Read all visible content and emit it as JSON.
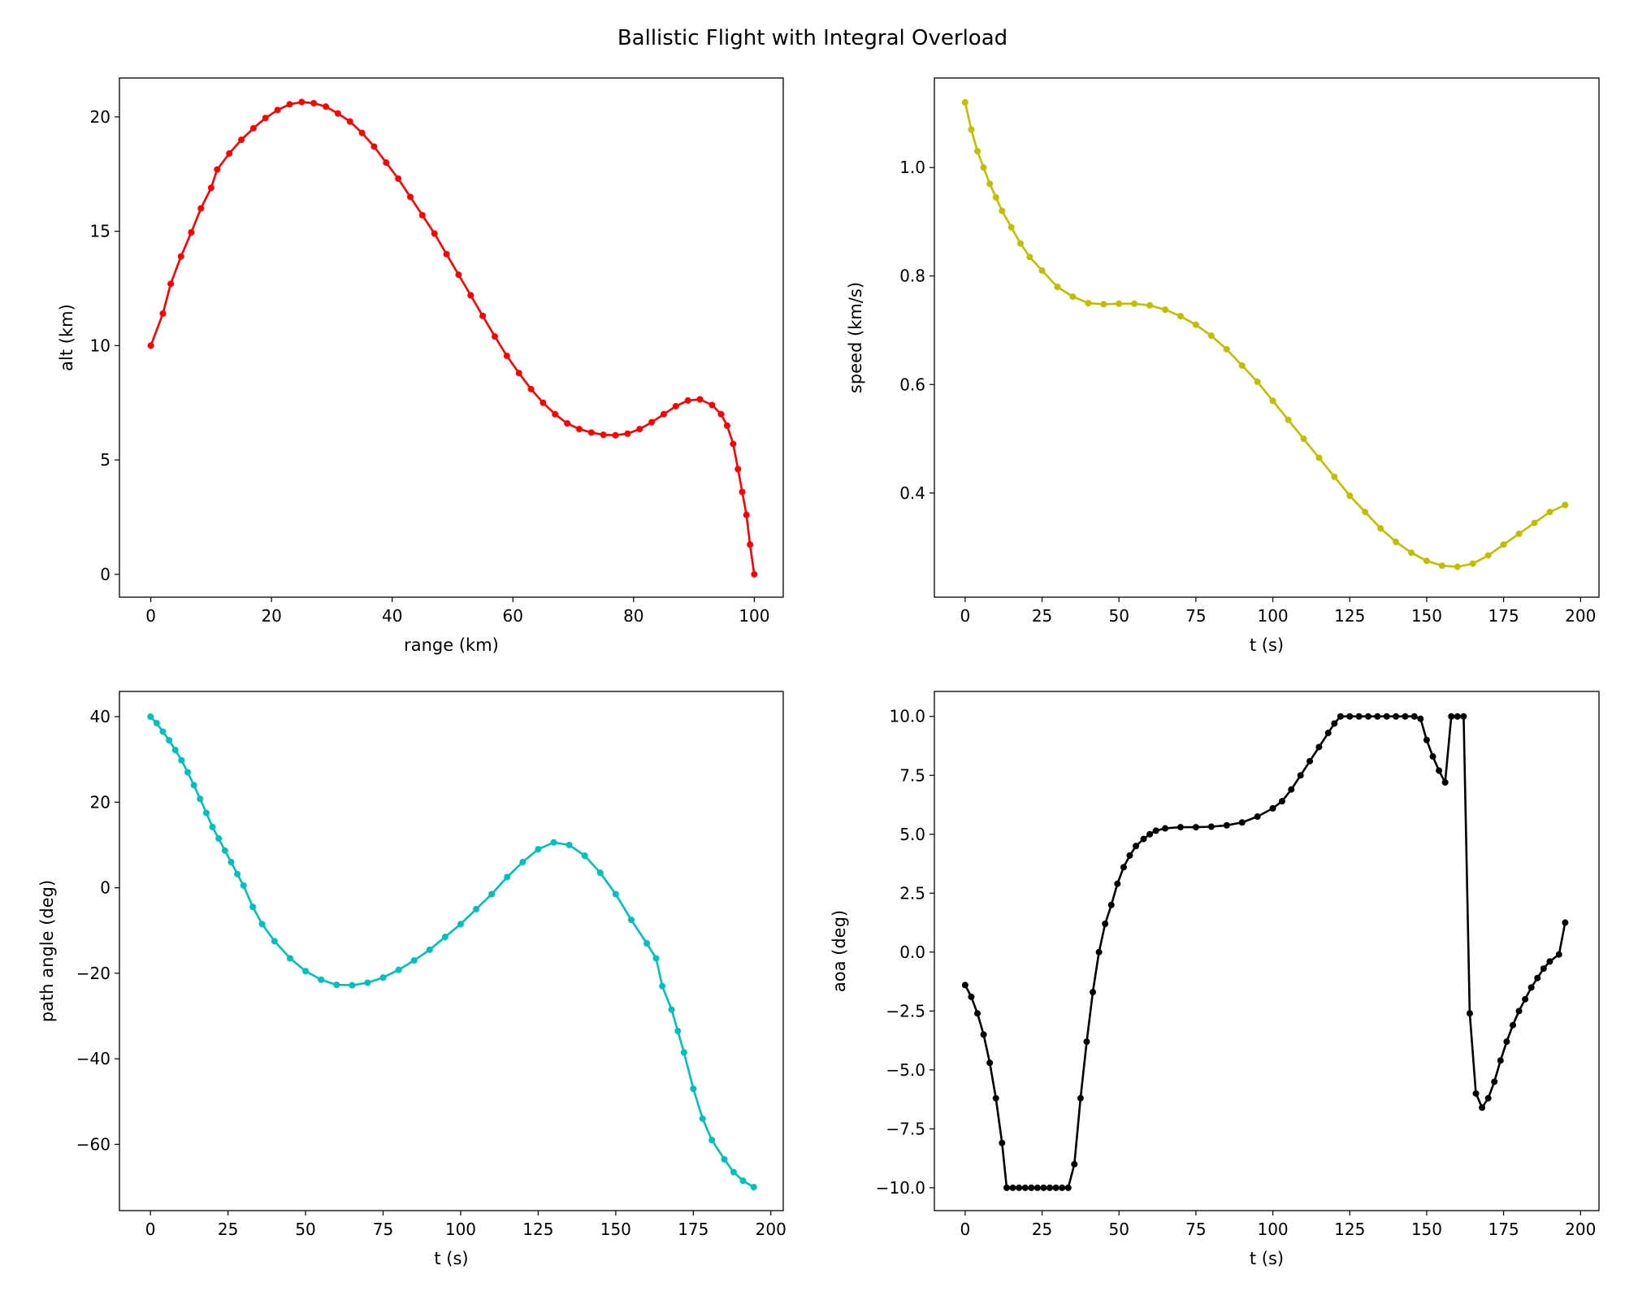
{
  "figure": {
    "title": "Ballistic Flight with Integral Overload"
  },
  "chart_data": [
    {
      "type": "line",
      "xlabel": "range (km)",
      "ylabel": "alt (km)",
      "xlim": [
        -5.2,
        104.8
      ],
      "ylim": [
        -1.0,
        21.7
      ],
      "xticks": [
        0,
        20,
        40,
        60,
        80,
        100
      ],
      "yticks": [
        0,
        5,
        10,
        15,
        20
      ],
      "grid": false,
      "color": "#ff0000",
      "marker": "dot",
      "x": [
        0,
        2,
        3.3,
        5,
        6.7,
        8.3,
        10,
        11,
        13,
        15,
        17,
        19,
        21,
        23,
        25,
        27,
        29,
        31,
        33,
        35,
        37,
        39,
        41,
        43,
        45,
        47,
        49,
        51,
        53,
        55,
        57,
        59,
        61,
        63,
        65,
        67,
        69,
        71,
        73,
        75,
        77,
        79,
        81,
        83,
        85,
        87,
        89,
        91,
        93,
        94.5,
        95.5,
        96.5,
        97.3,
        98,
        98.7,
        99.3,
        100
      ],
      "y": [
        10,
        11.4,
        12.7,
        13.9,
        14.95,
        16,
        16.9,
        17.7,
        18.4,
        19,
        19.5,
        19.95,
        20.3,
        20.55,
        20.65,
        20.6,
        20.45,
        20.15,
        19.8,
        19.3,
        18.7,
        18.0,
        17.3,
        16.5,
        15.7,
        14.9,
        14.0,
        13.1,
        12.2,
        11.3,
        10.4,
        9.55,
        8.8,
        8.1,
        7.5,
        7.0,
        6.6,
        6.35,
        6.2,
        6.1,
        6.08,
        6.15,
        6.35,
        6.65,
        7.0,
        7.35,
        7.6,
        7.65,
        7.4,
        7.0,
        6.5,
        5.7,
        4.6,
        3.6,
        2.6,
        1.3,
        0
      ]
    },
    {
      "type": "line",
      "xlabel": "t (s)",
      "ylabel": "speed (km/s)",
      "xlim": [
        -10,
        206
      ],
      "ylim": [
        0.208,
        1.165
      ],
      "xticks": [
        0,
        25,
        50,
        75,
        100,
        125,
        150,
        175,
        200
      ],
      "yticks": [
        0.4,
        0.6,
        0.8,
        1.0
      ],
      "ytick_labels": [
        "0.4",
        "0.6",
        "0.8",
        "1.0"
      ],
      "grid": false,
      "color": "#bfbf00",
      "marker": "dot",
      "x": [
        0,
        2,
        4,
        6,
        8,
        10,
        12,
        15,
        18,
        21,
        25,
        30,
        35,
        40,
        45,
        50,
        55,
        60,
        65,
        70,
        75,
        80,
        85,
        90,
        95,
        100,
        105,
        110,
        115,
        120,
        125,
        130,
        135,
        140,
        145,
        150,
        155,
        160,
        165,
        170,
        175,
        180,
        185,
        190,
        195
      ],
      "y": [
        1.12,
        1.07,
        1.03,
        1.0,
        0.97,
        0.945,
        0.92,
        0.89,
        0.86,
        0.835,
        0.81,
        0.78,
        0.762,
        0.75,
        0.748,
        0.749,
        0.749,
        0.746,
        0.738,
        0.726,
        0.71,
        0.69,
        0.665,
        0.635,
        0.605,
        0.57,
        0.535,
        0.5,
        0.465,
        0.43,
        0.395,
        0.365,
        0.335,
        0.31,
        0.29,
        0.275,
        0.266,
        0.264,
        0.27,
        0.285,
        0.305,
        0.325,
        0.345,
        0.365,
        0.378
      ]
    },
    {
      "type": "line",
      "xlabel": "t (s)",
      "ylabel": "path angle (deg)",
      "xlim": [
        -10,
        204
      ],
      "ylim": [
        -75.5,
        45.9
      ],
      "xticks": [
        0,
        25,
        50,
        75,
        100,
        125,
        150,
        175,
        200
      ],
      "yticks": [
        -60,
        -40,
        -20,
        0,
        20,
        40
      ],
      "ytick_labels": [
        "−60",
        "−40",
        "−20",
        "0",
        "20",
        "40"
      ],
      "grid": false,
      "color": "#00bfbf",
      "marker": "dot",
      "x": [
        0,
        2,
        4,
        6,
        8,
        10,
        12,
        14,
        16,
        18,
        20,
        22,
        24,
        26,
        28,
        30,
        33,
        36,
        40,
        45,
        50,
        55,
        60,
        65,
        70,
        75,
        80,
        85,
        90,
        95,
        100,
        105,
        110,
        115,
        120,
        125,
        130,
        135,
        140,
        145,
        150,
        155,
        160,
        163,
        165,
        168,
        170,
        172,
        175,
        178,
        181,
        185,
        188,
        191,
        194.5
      ],
      "y": [
        40,
        38.5,
        36.5,
        34.5,
        32.2,
        29.8,
        27,
        24,
        20.8,
        17.5,
        14.2,
        11.5,
        8.7,
        6,
        3.2,
        0.5,
        -4.5,
        -8.5,
        -12.5,
        -16.5,
        -19.5,
        -21.5,
        -22.7,
        -22.8,
        -22.2,
        -21,
        -19.2,
        -17,
        -14.5,
        -11.5,
        -8.5,
        -5,
        -1.5,
        2.5,
        6,
        9,
        10.6,
        10,
        7.5,
        3.5,
        -1.5,
        -7.5,
        -13,
        -16.5,
        -23,
        -28.5,
        -33.5,
        -38.5,
        -47,
        -54,
        -59,
        -63.5,
        -66.5,
        -68.5,
        -70
      ]
    },
    {
      "type": "line",
      "xlabel": "t (s)",
      "ylabel": "aoa (deg)",
      "xlim": [
        -10,
        206
      ],
      "ylim": [
        -10.97,
        11.06
      ],
      "xticks": [
        0,
        25,
        50,
        75,
        100,
        125,
        150,
        175,
        200
      ],
      "yticks": [
        -10,
        -7.5,
        -5,
        -2.5,
        0,
        2.5,
        5,
        7.5,
        10
      ],
      "ytick_labels": [
        "−10.0",
        "−7.5",
        "−5.0",
        "−2.5",
        "0.0",
        "2.5",
        "5.0",
        "7.5",
        "10.0"
      ],
      "grid": false,
      "color": "#000000",
      "marker": "dot",
      "x": [
        0,
        2,
        4,
        6,
        8,
        10,
        12,
        13.5,
        15.5,
        17.5,
        19.5,
        21.5,
        23.5,
        25.5,
        27.5,
        29.5,
        31.5,
        33.5,
        35.5,
        37.5,
        39.5,
        41.5,
        43.5,
        45.5,
        47.5,
        49.5,
        51.5,
        53.5,
        55.5,
        58,
        60,
        62,
        65,
        70,
        75,
        80,
        85,
        90,
        95,
        100,
        103,
        106,
        109,
        112,
        115,
        118,
        120,
        122,
        125,
        128,
        131,
        134,
        137,
        140,
        143,
        146,
        148,
        150,
        152,
        154,
        156,
        158,
        160,
        162,
        164,
        166,
        168,
        170,
        172,
        174,
        176,
        178,
        180,
        182,
        184,
        186,
        188,
        190,
        193,
        195
      ],
      "y": [
        -1.4,
        -1.9,
        -2.6,
        -3.5,
        -4.7,
        -6.2,
        -8.1,
        -10,
        -10,
        -10,
        -10,
        -10,
        -10,
        -10,
        -10,
        -10,
        -10,
        -10,
        -9,
        -6.2,
        -3.8,
        -1.7,
        0,
        1.2,
        2,
        2.9,
        3.6,
        4.1,
        4.5,
        4.8,
        5,
        5.15,
        5.25,
        5.3,
        5.3,
        5.32,
        5.38,
        5.5,
        5.75,
        6.1,
        6.4,
        6.9,
        7.5,
        8.1,
        8.7,
        9.3,
        9.7,
        10,
        10,
        10,
        10,
        10,
        10,
        10,
        10,
        10,
        9.9,
        9,
        8.3,
        7.7,
        7.2,
        10,
        10,
        10,
        -2.6,
        -6,
        -6.6,
        -6.2,
        -5.5,
        -4.6,
        -3.8,
        -3.1,
        -2.5,
        -2,
        -1.5,
        -1.1,
        -0.7,
        -0.4,
        -0.1,
        1.25
      ]
    }
  ]
}
